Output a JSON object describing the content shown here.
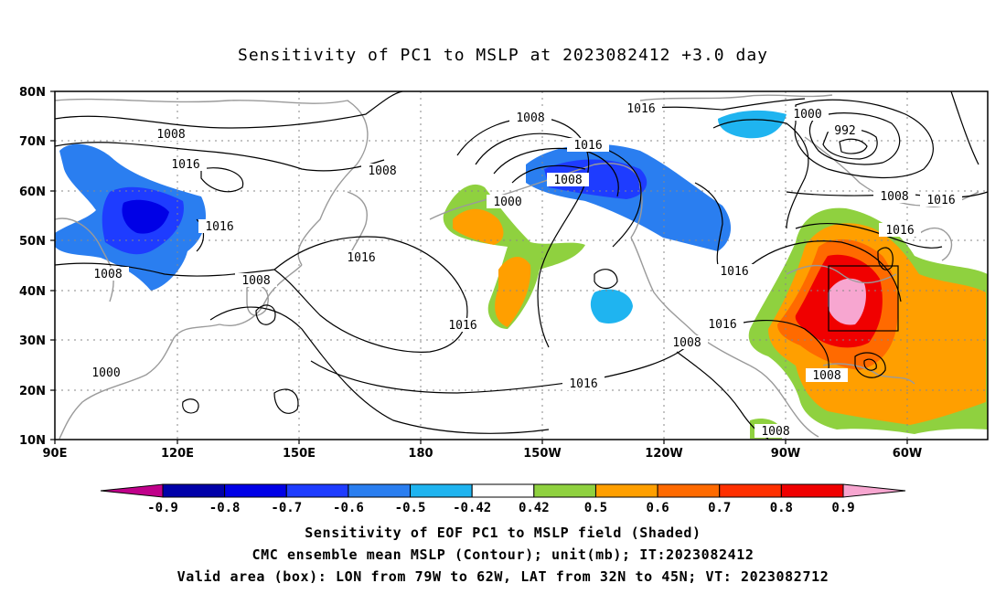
{
  "title": "Sensitivity of PC1 to MSLP at 2023082412 +3.0 day",
  "map": {
    "lat_labels": [
      "80N",
      "70N",
      "60N",
      "50N",
      "40N",
      "30N",
      "20N",
      "10N"
    ],
    "lon_labels": [
      "90E",
      "120E",
      "150E",
      "180",
      "150W",
      "120W",
      "90W",
      "60W"
    ],
    "contour_labels": [
      "1008",
      "1016",
      "1016",
      "1008",
      "1008",
      "1000",
      "1008",
      "1008",
      "1000",
      "1016",
      "1008",
      "1016",
      "1016",
      "1016",
      "1016",
      "1000",
      "992",
      "1008",
      "1016",
      "1016",
      "1016",
      "1008",
      "1008",
      "1016",
      "1008"
    ],
    "valid_box": {
      "lon_from": "79W",
      "lon_to": "62W",
      "lat_from": "32N",
      "lat_to": "45N"
    }
  },
  "colorbar": {
    "labels": [
      "-0.9",
      "-0.8",
      "-0.7",
      "-0.6",
      "-0.5",
      "-0.42",
      "0.42",
      "0.5",
      "0.6",
      "0.7",
      "0.8",
      "0.9"
    ],
    "colors": [
      "#c0008a",
      "#0000a8",
      "#0000e6",
      "#1e3cff",
      "#2a7ef0",
      "#1fb4f0",
      "#ffffff",
      "#8fd13f",
      "#ff9f00",
      "#ff6a00",
      "#ff3000",
      "#f00000",
      "#f7a6d0"
    ]
  },
  "captions": {
    "line1": "Sensitivity of EOF PC1 to MSLP field (Shaded)",
    "line2": "CMC ensemble mean MSLP (Contour); unit(mb); IT:2023082412",
    "line3": "Valid area (box): LON from 79W to 62W, LAT from 32N to 45N; VT: 2023082712"
  }
}
